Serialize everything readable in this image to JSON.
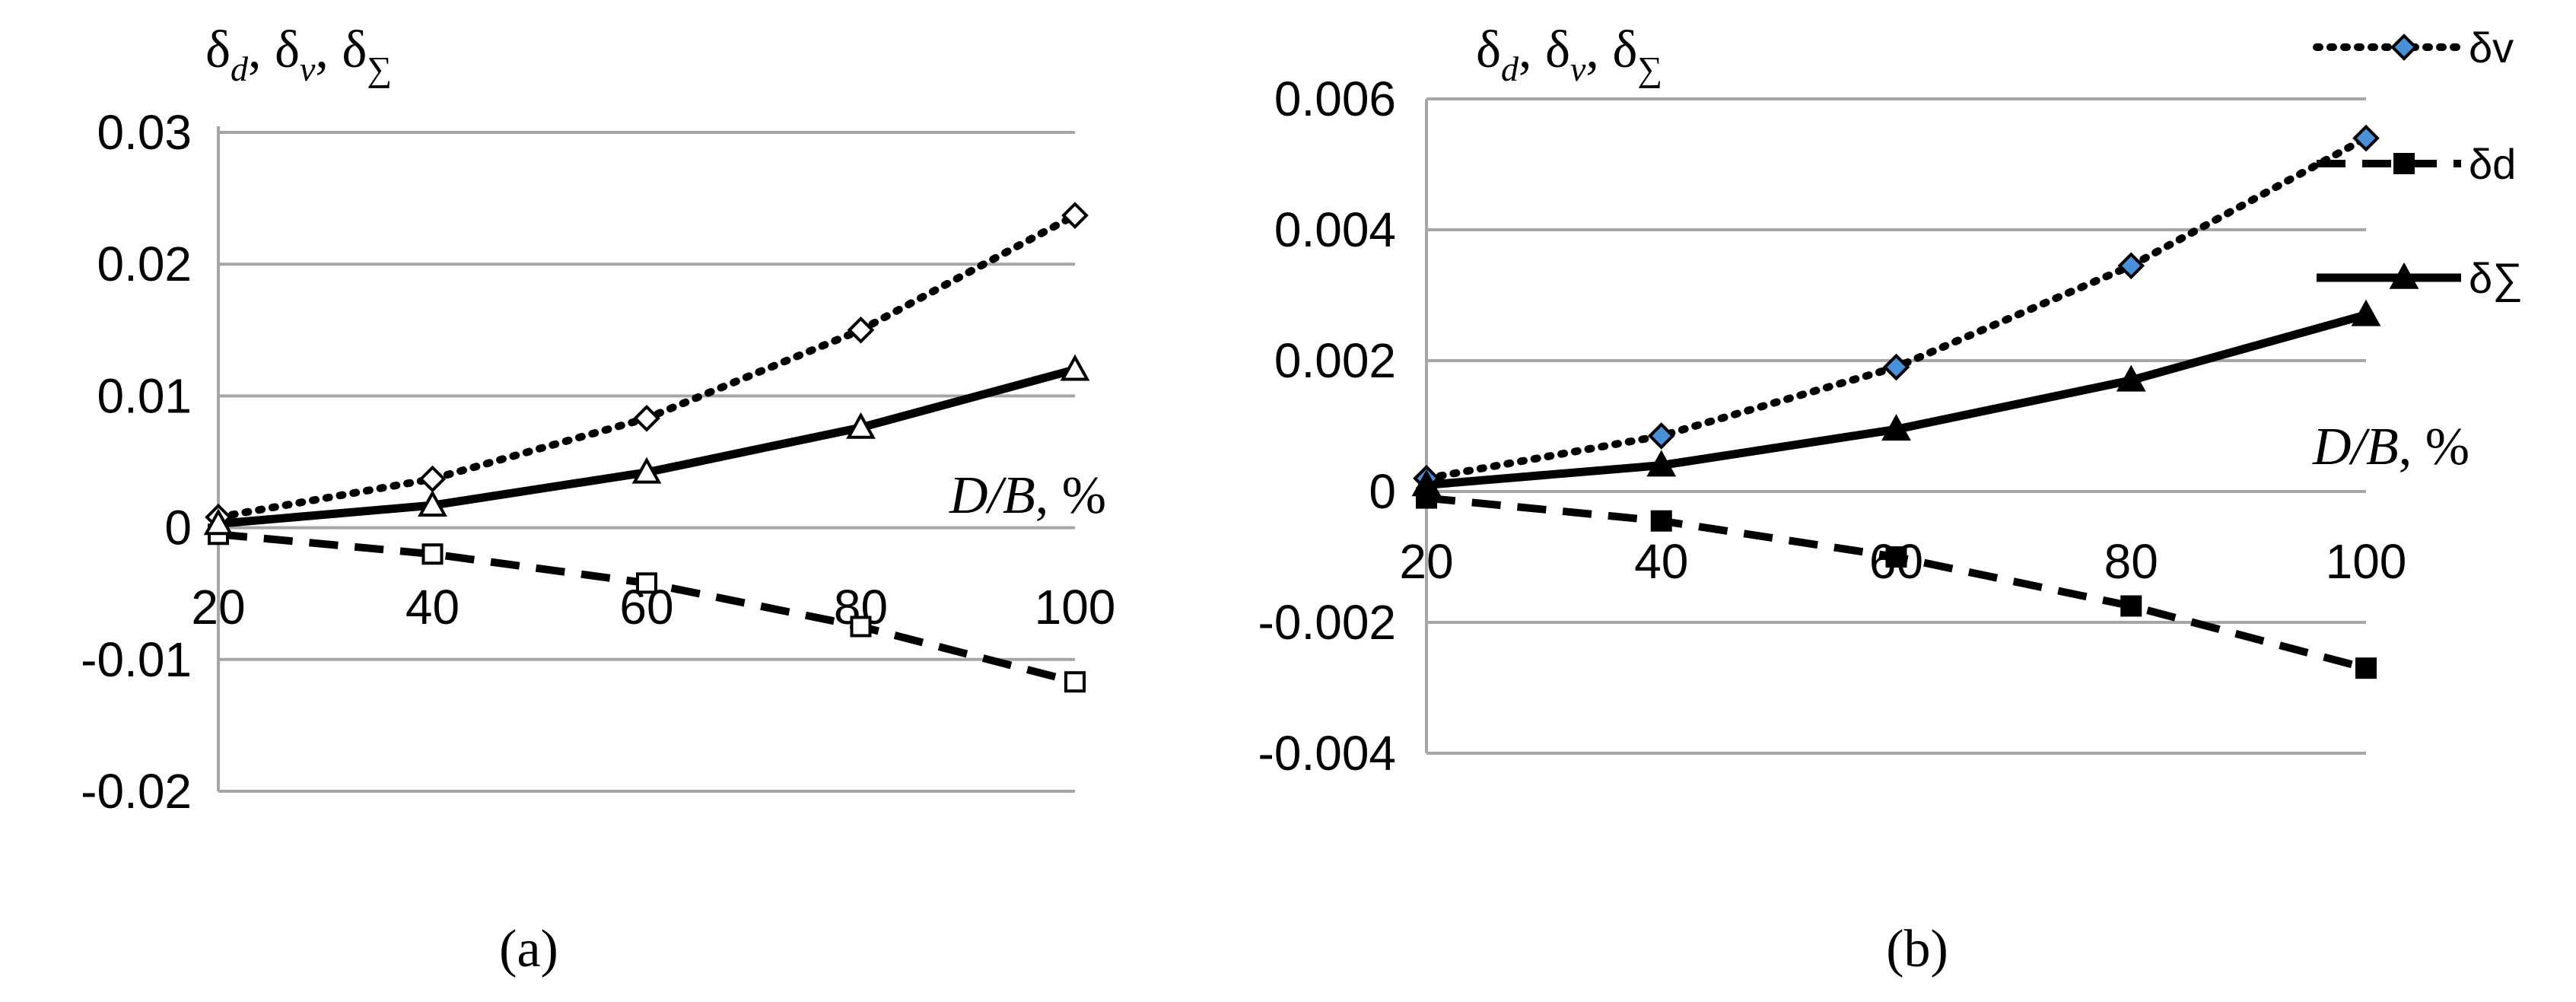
{
  "chart_data": [
    {
      "type": "line",
      "panel": "a",
      "caption": "(a)",
      "ylabel_parts": [
        "δ",
        "d",
        ", δ",
        "v",
        ", δ",
        "∑"
      ],
      "xlabel_parts": [
        "D/B",
        ", %"
      ],
      "x": [
        20,
        40,
        60,
        80,
        100
      ],
      "y_ticks": [
        -0.02,
        -0.01,
        0,
        0.01,
        0.02,
        0.03
      ],
      "y_tick_labels": [
        "-0.02",
        "-0.01",
        "0",
        "0.01",
        "0.02",
        "0.03"
      ],
      "x_tick_labels": [
        "20",
        "40",
        "60",
        "80",
        "100"
      ],
      "ylim": [
        -0.02,
        0.03
      ],
      "series": [
        {
          "name": "δv",
          "style": "dotted",
          "marker": "diamond-open",
          "values": [
            0.0008,
            0.0037,
            0.0083,
            0.015,
            0.0237
          ]
        },
        {
          "name": "δd",
          "style": "dashed",
          "marker": "square-open",
          "values": [
            -0.0005,
            -0.002,
            -0.0042,
            -0.0075,
            -0.0117
          ]
        },
        {
          "name": "δ∑",
          "style": "solid",
          "marker": "triangle-open",
          "values": [
            0.0003,
            0.0017,
            0.0042,
            0.0076,
            0.012
          ]
        }
      ]
    },
    {
      "type": "line",
      "panel": "b",
      "caption": "(b)",
      "ylabel_parts": [
        "δ",
        "d",
        ", δ",
        "v",
        ", δ",
        "∑"
      ],
      "xlabel_parts": [
        "D/B",
        ", %"
      ],
      "x": [
        20,
        40,
        60,
        80,
        100
      ],
      "y_ticks": [
        -0.004,
        -0.002,
        0,
        0.002,
        0.004,
        0.006
      ],
      "y_tick_labels": [
        "-0.004",
        "-0.002",
        "0",
        "0.002",
        "0.004",
        "0.006"
      ],
      "x_tick_labels": [
        "20",
        "40",
        "60",
        "80",
        "100"
      ],
      "ylim": [
        -0.004,
        0.006
      ],
      "legend_position": "top-right",
      "series": [
        {
          "name": "δv",
          "style": "dotted",
          "marker": "diamond-blue",
          "values": [
            0.0002,
            0.00085,
            0.0019,
            0.00345,
            0.0054
          ]
        },
        {
          "name": "δd",
          "style": "dashed",
          "marker": "square-filled",
          "values": [
            -0.0001,
            -0.00045,
            -0.001,
            -0.00175,
            -0.0027
          ]
        },
        {
          "name": "δ∑",
          "style": "solid",
          "marker": "triangle-filled",
          "values": [
            0.0001,
            0.0004,
            0.00095,
            0.0017,
            0.0027
          ]
        }
      ]
    }
  ]
}
